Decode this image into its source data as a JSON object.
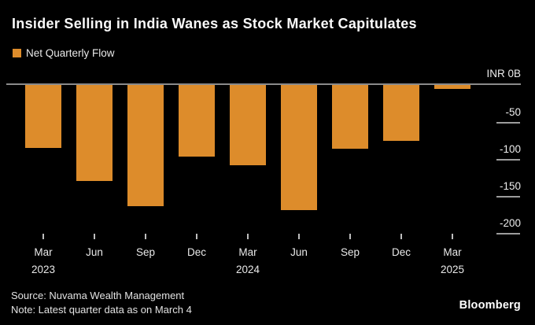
{
  "title": "Insider Selling in India Wanes as Stock Market Capitulates",
  "legend": {
    "label": "Net Quarterly Flow",
    "swatch_icon": "orange-square-swatch"
  },
  "source_line": "Source: Nuvama Wealth Management",
  "note_line": "Note: Latest quarter data as on March 4",
  "brand": "Bloomberg",
  "colors": {
    "background": "#000000",
    "bar": "#DD8C2B",
    "zero_line": "#8A8A8A",
    "tick_line": "#9C9C9C",
    "text": "#E9E9E9",
    "title_text": "#FAFAFA"
  },
  "chart_data": {
    "type": "bar",
    "title": "Insider Selling in India Wanes as Stock Market Capitulates",
    "series_name": "Net Quarterly Flow",
    "unit": "INR billions",
    "categories": [
      "Mar 2023",
      "Jun 2023",
      "Sep 2023",
      "Dec 2023",
      "Mar 2024",
      "Jun 2024",
      "Sep 2024",
      "Dec 2024",
      "Mar 2025"
    ],
    "x_tick_labels": [
      "Mar",
      "Jun",
      "Sep",
      "Dec",
      "Mar",
      "Jun",
      "Sep",
      "Dec",
      "Mar"
    ],
    "x_year_labels": [
      {
        "index": 0,
        "label": "2023"
      },
      {
        "index": 4,
        "label": "2024"
      },
      {
        "index": 8,
        "label": "2025"
      }
    ],
    "values": [
      -85,
      -130,
      -164,
      -97,
      -109,
      -169,
      -86,
      -75,
      -5
    ],
    "y_axis": {
      "side": "right",
      "ticks": [
        {
          "value": 0,
          "label": "INR 0B"
        },
        {
          "value": -50,
          "label": "-50"
        },
        {
          "value": -100,
          "label": "-100"
        },
        {
          "value": -150,
          "label": "-150"
        },
        {
          "value": -200,
          "label": "-200"
        }
      ],
      "ylim": [
        -210,
        0
      ]
    },
    "grid": "off",
    "legend_position": "top-left",
    "bar_color": "#DD8C2B"
  }
}
